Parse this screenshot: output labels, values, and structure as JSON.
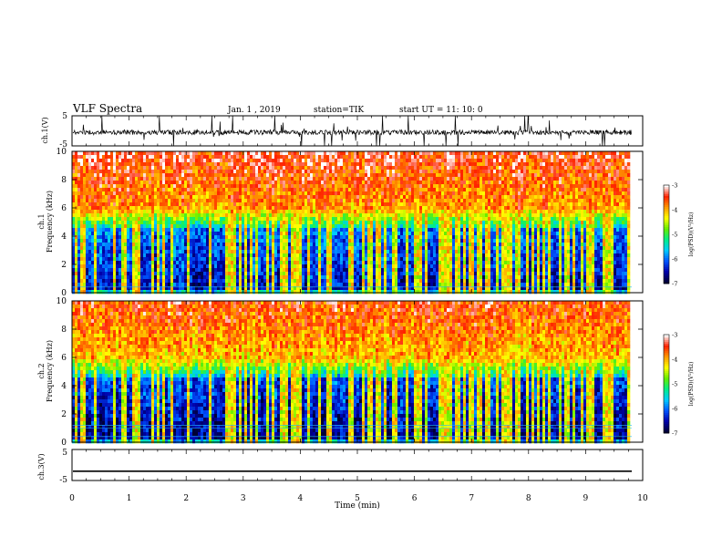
{
  "header": {
    "title": "VLF Spectra",
    "date": "Jan. 1 , 2019",
    "station": "station=TIK",
    "start": "start UT =  11: 10: 0"
  },
  "colors": {
    "spectrogram_ramp": [
      "#000033",
      "#0000aa",
      "#0055ff",
      "#00ccff",
      "#00ee88",
      "#66ee00",
      "#ffff00",
      "#ff9900",
      "#ff2200",
      "#ffffff"
    ],
    "trace": "#000000"
  },
  "chart_data": [
    {
      "type": "line",
      "panel": "ch.1 waveform",
      "ylabel": "ch.1(V)",
      "ylim": [
        -5,
        5
      ],
      "yticks": [
        "5",
        "-5"
      ],
      "xlim": [
        0,
        10
      ],
      "series": [
        {
          "values_summary": "noisy trace around -0.5 V with frequent spikes reaching the +5 / -5 limits"
        }
      ]
    },
    {
      "type": "heatmap",
      "panel": "ch.1 spectrogram",
      "ylabel": "ch.1\nFrequency (kHz)",
      "ylim": [
        0,
        10
      ],
      "yticks": [
        "0",
        "2",
        "4",
        "6",
        "8",
        "10"
      ],
      "xlim": [
        0,
        9.8
      ],
      "colorbar": {
        "label": "log(PSD)(V²/Hz)",
        "range": [
          -7,
          -3
        ],
        "ticks": [
          "-3",
          "-4",
          "-5",
          "-6",
          "-7"
        ]
      },
      "pattern": "high PSD (red) above ~6 kHz, green/yellow transition 4.5-6 kHz, low PSD (dark blue) below 4.5 kHz, many vertical broadband impulses"
    },
    {
      "type": "heatmap",
      "panel": "ch.2 spectrogram",
      "ylabel": "ch.2\nFrequency (kHz)",
      "ylim": [
        0,
        10
      ],
      "yticks": [
        "0",
        "2",
        "4",
        "6",
        "8",
        "10"
      ],
      "xlim": [
        0,
        9.8
      ],
      "colorbar": {
        "label": "log(PSD)(V²/Hz)",
        "range": [
          -7,
          -3
        ],
        "ticks": [
          "-3",
          "-4",
          "-5",
          "-6",
          "-7"
        ]
      },
      "pattern": "same structure as ch.1 with slightly lower overall level and horizontal lines near 1 kHz"
    },
    {
      "type": "line",
      "panel": "ch.3 waveform",
      "ylabel": "ch.3(V)",
      "ylim": [
        -5,
        5
      ],
      "yticks": [
        "5",
        "-5"
      ],
      "xlim": [
        0,
        9.8
      ],
      "series": [
        {
          "values_summary": "flat line at about -2 V"
        }
      ]
    }
  ],
  "xaxis": {
    "label": "Time (min)",
    "ticks": [
      "0",
      "1",
      "2",
      "3",
      "4",
      "5",
      "6",
      "7",
      "8",
      "9",
      "10"
    ]
  }
}
